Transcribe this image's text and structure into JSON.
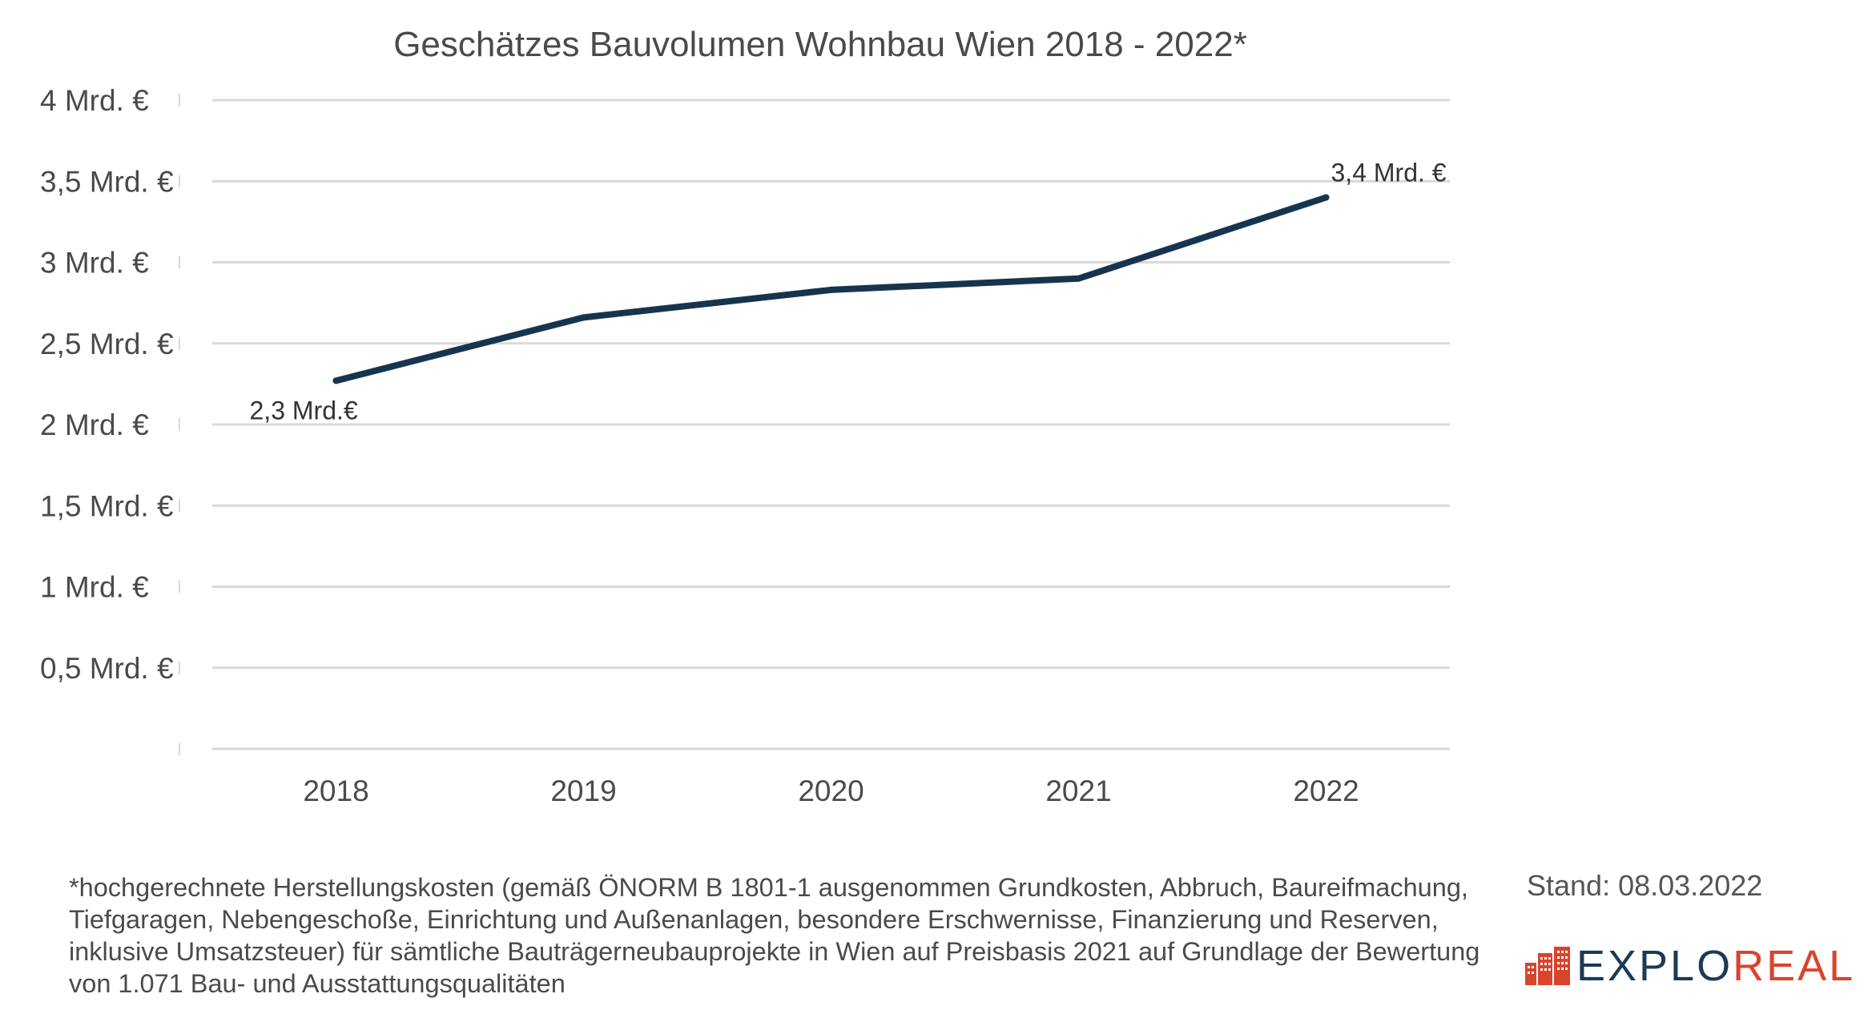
{
  "chart_data": {
    "type": "line",
    "title": "Geschätzes Bauvolumen Wohnbau Wien 2018 - 2022*",
    "categories": [
      "2018",
      "2019",
      "2020",
      "2021",
      "2022"
    ],
    "series": [
      {
        "values": [
          2.27,
          2.66,
          2.83,
          2.9,
          3.4
        ],
        "color": "#17344f"
      }
    ],
    "ylim": [
      0,
      4
    ],
    "yticks": [
      0.5,
      1,
      1.5,
      2,
      2.5,
      3,
      3.5,
      4
    ],
    "ytick_labels": [
      "0,5 Mrd. €",
      "1 Mrd. €",
      "1,5 Mrd. €",
      "2 Mrd. €",
      "2,5 Mrd. €",
      "3 Mrd. €",
      "3,5 Mrd. €",
      "4 Mrd. €"
    ],
    "data_labels": [
      {
        "index": 0,
        "text": "2,3 Mrd.€"
      },
      {
        "index": 4,
        "text": "3,4 Mrd. €"
      }
    ],
    "grid": true,
    "gridline_color": "#d9d9d9",
    "legend": "none"
  },
  "footnote": "*hochgerechnete Herstellungskosten (gemäß ÖNORM B 1801-1 ausgenommen Grundkosten, Abbruch, Baureifmachung, Tiefgaragen, Nebengeschoße, Einrichtung und Außenanlagen, besondere Erschwernisse, Finanzierung und Reserven, inklusive Umsatzsteuer) für sämtliche Bauträgerneubauprojekte in Wien auf Preisbasis 2021 auf Grundlage der Bewertung von 1.071 Bau- und Ausstattungsqualitäten",
  "stand": "Stand: 08.03.2022",
  "logo": {
    "text_part1": "EXPLO",
    "text_part2": "REAL",
    "icon": "building-icon",
    "color_dark": "#1b3a55",
    "color_accent": "#d9442c"
  }
}
